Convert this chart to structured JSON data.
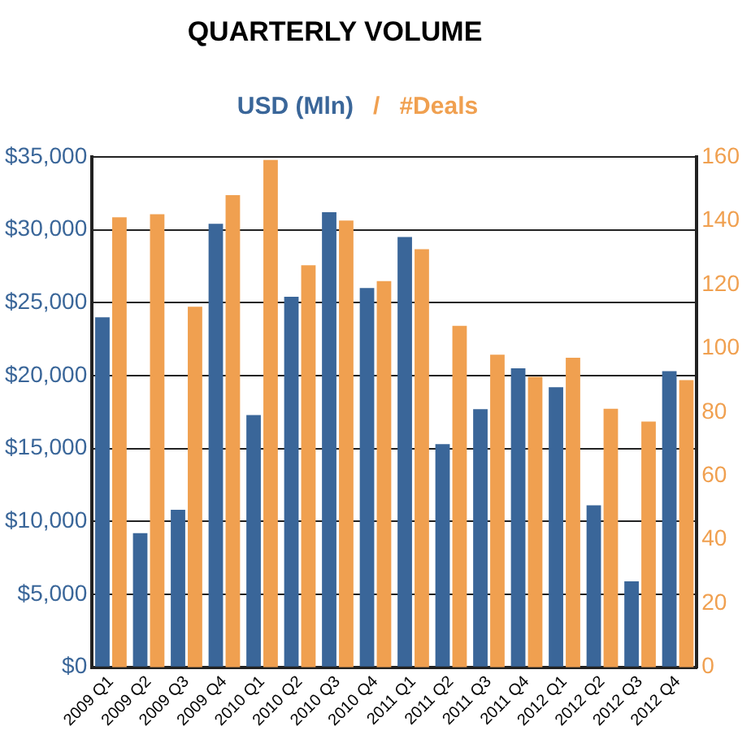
{
  "chart_data": {
    "type": "bar",
    "title": "QUARTERLY VOLUME",
    "categories": [
      "2009 Q1",
      "2009 Q2",
      "2009 Q3",
      "2009 Q4",
      "2010 Q1",
      "2010 Q2",
      "2010 Q3",
      "2010 Q4",
      "2011 Q1",
      "2011 Q2",
      "2011 Q3",
      "2011 Q4",
      "2012 Q1",
      "2012 Q2",
      "2012 Q3",
      "2012 Q4"
    ],
    "series": [
      {
        "name": "USD (Mln)",
        "color": "#3a6699",
        "values": [
          24000,
          9200,
          10800,
          30400,
          17300,
          25400,
          31200,
          26000,
          29500,
          15300,
          17700,
          20500,
          19200,
          11100,
          5900,
          20300
        ]
      },
      {
        "name": "#Deals",
        "color": "#f0a050",
        "axis": "y2",
        "values": [
          141,
          142,
          113,
          148,
          159,
          126,
          140,
          121,
          131,
          107,
          98,
          91,
          97,
          81,
          77,
          90
        ]
      }
    ],
    "ylim": [
      0,
      35000
    ],
    "yticks": [
      {
        "value": 0,
        "label": "$0"
      },
      {
        "value": 5000,
        "label": "$5,000"
      },
      {
        "value": 10000,
        "label": "$10,000"
      },
      {
        "value": 15000,
        "label": "$15,000"
      },
      {
        "value": 20000,
        "label": "$20,000"
      },
      {
        "value": 25000,
        "label": "$25,000"
      },
      {
        "value": 30000,
        "label": "$30,000"
      },
      {
        "value": 35000,
        "label": "$35,000"
      }
    ],
    "y2lim": [
      0,
      160
    ],
    "y2ticks": [
      0,
      20,
      40,
      60,
      80,
      100,
      120,
      140,
      160
    ],
    "annotations": [
      "/"
    ],
    "grid": "y",
    "legend": "top"
  }
}
